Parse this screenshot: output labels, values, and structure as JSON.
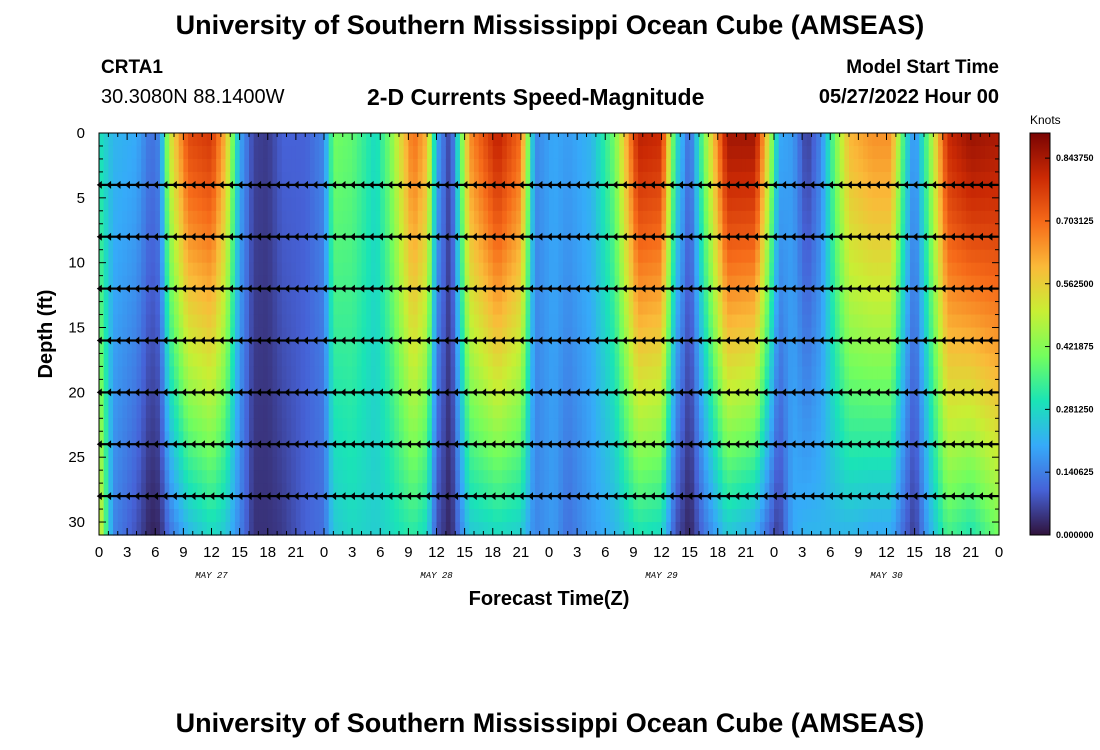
{
  "header": {
    "title": "University of Southern Mississippi Ocean Cube (AMSEAS)",
    "station_id": "CRTA1",
    "station_coords": "30.3080N  88.1400W",
    "subtitle": "2-D Currents Speed-Magnitude",
    "model_start_label": "Model Start Time",
    "model_start_value": "05/27/2022 Hour 00"
  },
  "footer": {
    "title": "University of Southern Mississippi Ocean Cube (AMSEAS)"
  },
  "colors": {
    "scale": [
      "#30123b",
      "#4662d7",
      "#36aaf9",
      "#1ae4b6",
      "#72fe5e",
      "#c8ef34",
      "#faba39",
      "#f66b19",
      "#cb2a04",
      "#7a0403"
    ],
    "arrow": "#000000",
    "axis": "#000000"
  },
  "chart_data": {
    "type": "heatmap",
    "title": "2-D Currents Speed-Magnitude",
    "xlabel": "Forecast Time(Z)",
    "ylabel": "Depth (ft)",
    "x_range": [
      0,
      96
    ],
    "ylim": [
      31,
      0
    ],
    "x_ticks": [
      0,
      3,
      6,
      9,
      12,
      15,
      18,
      21,
      24,
      27,
      30,
      33,
      36,
      39,
      42,
      45,
      48,
      51,
      54,
      57,
      60,
      63,
      66,
      69,
      72,
      75,
      78,
      81,
      84,
      87,
      90,
      93,
      96
    ],
    "x_tick_labels": [
      "0",
      "3",
      "6",
      "9",
      "12",
      "15",
      "18",
      "21",
      "0",
      "3",
      "6",
      "9",
      "12",
      "15",
      "18",
      "21",
      "0",
      "3",
      "6",
      "9",
      "12",
      "15",
      "18",
      "21",
      "0",
      "3",
      "6",
      "9",
      "12",
      "15",
      "18",
      "21",
      "0"
    ],
    "y_ticks": [
      0,
      5,
      10,
      15,
      20,
      25,
      30
    ],
    "y_tick_labels": [
      "0",
      "5",
      "10",
      "15",
      "20",
      "25",
      "30"
    ],
    "day_labels": [
      {
        "hour": 12,
        "label": "MAY 27"
      },
      {
        "hour": 36,
        "label": "MAY 28"
      },
      {
        "hour": 60,
        "label": "MAY 29"
      },
      {
        "hour": 84,
        "label": "MAY 30"
      }
    ],
    "colorbar": {
      "unit": "Knots",
      "min": 0.0,
      "max": 0.9,
      "tick_values": [
        0.0,
        0.140625,
        0.28125,
        0.421875,
        0.5625,
        0.703125,
        0.84375
      ],
      "tick_labels": [
        "0.000000",
        "0.140625",
        "0.281250",
        "0.421875",
        "0.562500",
        "0.703125",
        "0.843750"
      ]
    },
    "depth_levels": [
      4,
      8,
      12,
      16,
      20,
      24,
      28
    ],
    "column_profiles": [
      {
        "hour": 0.0,
        "top": 0.3,
        "bottom": 0.55
      },
      {
        "hour": 1.5,
        "top": 0.22,
        "bottom": 0.15
      },
      {
        "hour": 4.0,
        "top": 0.2,
        "bottom": 0.08
      },
      {
        "hour": 5.5,
        "top": 0.12,
        "bottom": 0.02
      },
      {
        "hour": 6.5,
        "top": 0.15,
        "bottom": 0.03
      },
      {
        "hour": 7.5,
        "top": 0.5,
        "bottom": 0.12
      },
      {
        "hour": 9.5,
        "top": 0.75,
        "bottom": 0.22
      },
      {
        "hour": 12.0,
        "top": 0.78,
        "bottom": 0.28
      },
      {
        "hour": 13.5,
        "top": 0.6,
        "bottom": 0.25
      },
      {
        "hour": 15.0,
        "top": 0.2,
        "bottom": 0.15
      },
      {
        "hour": 16.5,
        "top": 0.06,
        "bottom": 0.04
      },
      {
        "hour": 18.0,
        "top": 0.05,
        "bottom": 0.04
      },
      {
        "hour": 19.5,
        "top": 0.1,
        "bottom": 0.05
      },
      {
        "hour": 22.0,
        "top": 0.1,
        "bottom": 0.1
      },
      {
        "hour": 24.0,
        "top": 0.15,
        "bottom": 0.12
      },
      {
        "hour": 25.0,
        "top": 0.4,
        "bottom": 0.25
      },
      {
        "hour": 27.0,
        "top": 0.38,
        "bottom": 0.28
      },
      {
        "hour": 29.5,
        "top": 0.28,
        "bottom": 0.26
      },
      {
        "hour": 31.0,
        "top": 0.4,
        "bottom": 0.28
      },
      {
        "hour": 33.5,
        "top": 0.7,
        "bottom": 0.32
      },
      {
        "hour": 35.0,
        "top": 0.6,
        "bottom": 0.28
      },
      {
        "hour": 36.0,
        "top": 0.2,
        "bottom": 0.08
      },
      {
        "hour": 37.5,
        "top": 0.05,
        "bottom": 0.02
      },
      {
        "hour": 39.5,
        "top": 0.65,
        "bottom": 0.25
      },
      {
        "hour": 42.5,
        "top": 0.82,
        "bottom": 0.28
      },
      {
        "hour": 45.0,
        "top": 0.7,
        "bottom": 0.26
      },
      {
        "hour": 46.5,
        "top": 0.15,
        "bottom": 0.15
      },
      {
        "hour": 48.5,
        "top": 0.2,
        "bottom": 0.18
      },
      {
        "hour": 50.0,
        "top": 0.18,
        "bottom": 0.12
      },
      {
        "hour": 52.5,
        "top": 0.22,
        "bottom": 0.18
      },
      {
        "hour": 55.0,
        "top": 0.4,
        "bottom": 0.22
      },
      {
        "hour": 57.5,
        "top": 0.82,
        "bottom": 0.3
      },
      {
        "hour": 60.0,
        "top": 0.8,
        "bottom": 0.28
      },
      {
        "hour": 61.5,
        "top": 0.3,
        "bottom": 0.08
      },
      {
        "hour": 63.0,
        "top": 0.1,
        "bottom": 0.02
      },
      {
        "hour": 64.5,
        "top": 0.4,
        "bottom": 0.12
      },
      {
        "hour": 67.0,
        "top": 0.85,
        "bottom": 0.25
      },
      {
        "hour": 70.0,
        "top": 0.85,
        "bottom": 0.2
      },
      {
        "hour": 71.5,
        "top": 0.5,
        "bottom": 0.1
      },
      {
        "hour": 72.5,
        "top": 0.2,
        "bottom": 0.05
      },
      {
        "hour": 74.0,
        "top": 0.18,
        "bottom": 0.2
      },
      {
        "hour": 75.5,
        "top": 0.05,
        "bottom": 0.22
      },
      {
        "hour": 77.0,
        "top": 0.15,
        "bottom": 0.22
      },
      {
        "hour": 78.5,
        "top": 0.4,
        "bottom": 0.22
      },
      {
        "hour": 80.0,
        "top": 0.6,
        "bottom": 0.22
      },
      {
        "hour": 82.5,
        "top": 0.65,
        "bottom": 0.2
      },
      {
        "hour": 84.5,
        "top": 0.65,
        "bottom": 0.2
      },
      {
        "hour": 86.0,
        "top": 0.3,
        "bottom": 0.1
      },
      {
        "hour": 87.0,
        "top": 0.15,
        "bottom": 0.05
      },
      {
        "hour": 88.5,
        "top": 0.4,
        "bottom": 0.2
      },
      {
        "hour": 90.5,
        "top": 0.8,
        "bottom": 0.35
      },
      {
        "hour": 93.0,
        "top": 0.86,
        "bottom": 0.3
      },
      {
        "hour": 96.0,
        "top": 0.84,
        "bottom": 0.4
      }
    ],
    "arrow_direction": "west"
  }
}
